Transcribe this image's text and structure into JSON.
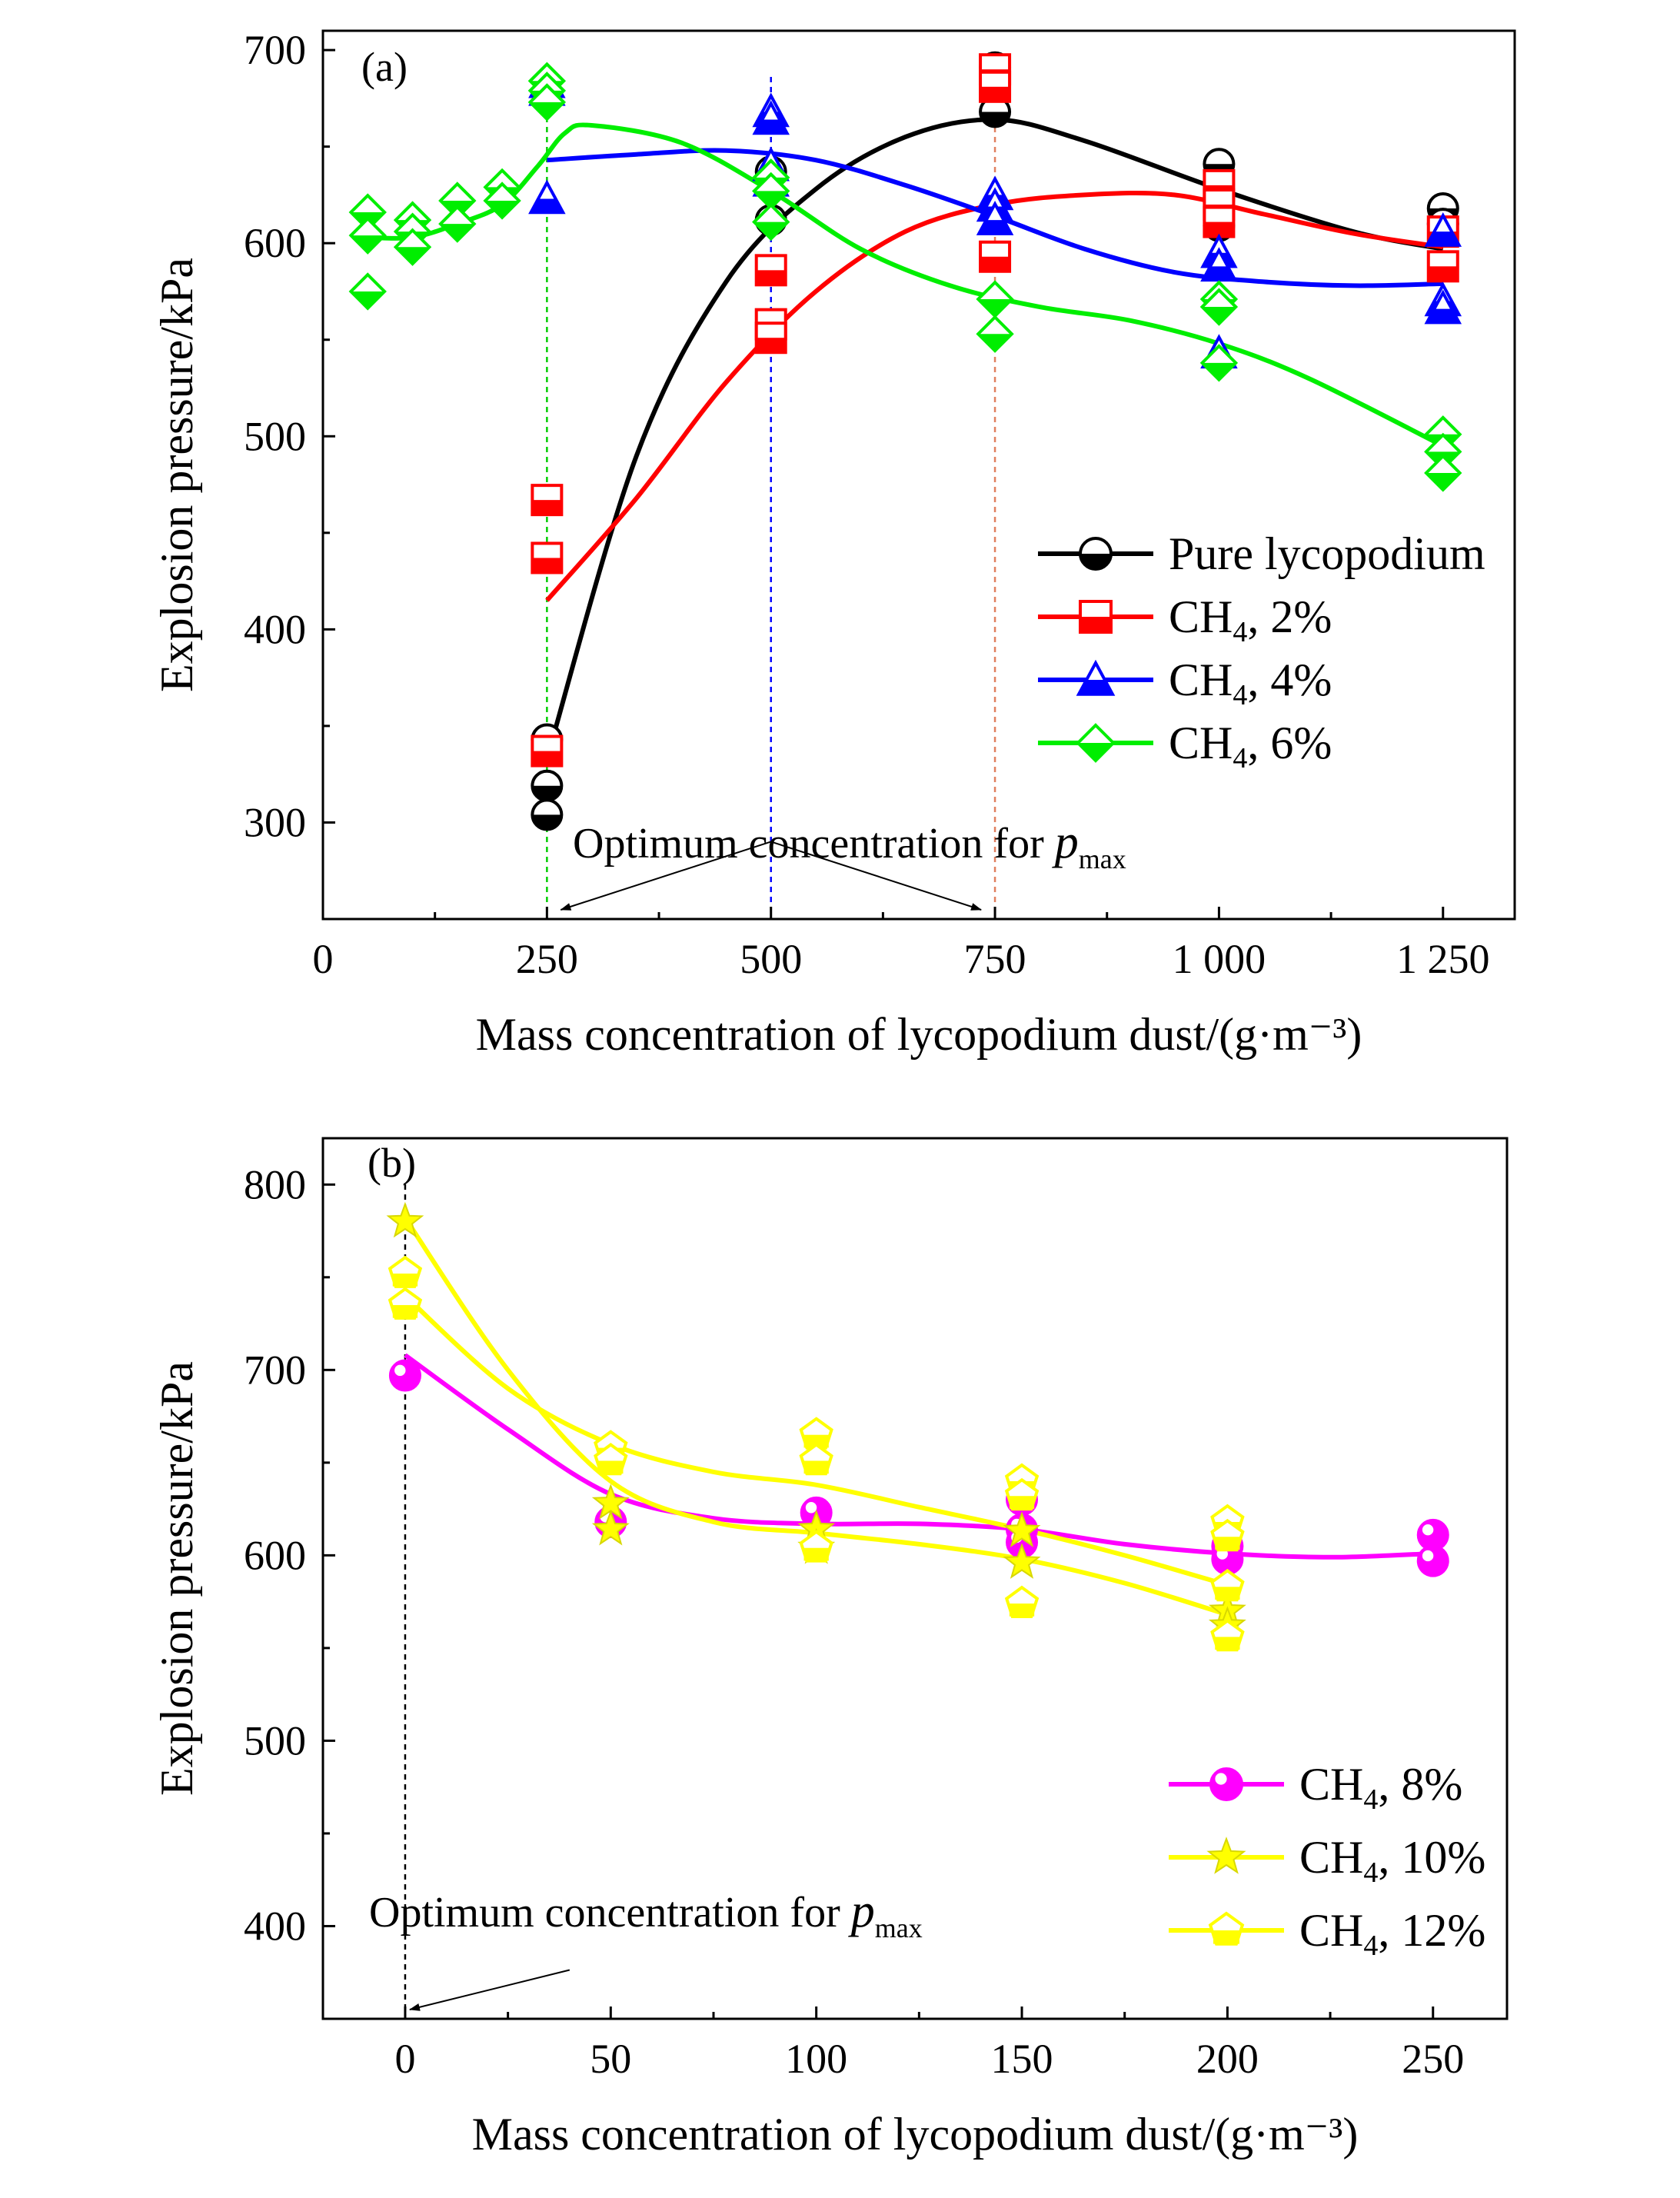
{
  "chart_data": [
    {
      "type": "scatter",
      "panel_label": "(a)",
      "xlabel": "Mass concentration of lycopodium dust/(g·m⁻³)",
      "ylabel": "Explosion pressure/kPa",
      "xlim": [
        0,
        1330
      ],
      "ylim": [
        250,
        710
      ],
      "xticks": [
        0,
        250,
        500,
        750,
        1000,
        1250
      ],
      "xtick_labels": [
        "0",
        "250",
        "500",
        "750",
        "1 000",
        "1 250"
      ],
      "yticks": [
        300,
        400,
        500,
        600,
        700
      ],
      "ytick_labels": [
        "300",
        "400",
        "500",
        "600",
        "700"
      ],
      "legend_position": "right",
      "annotation": {
        "text": "Optimum concentration  for ",
        "math": "p",
        "sub": "max",
        "targets": [
          250,
          750
        ],
        "anchor": [
          500,
          300
        ]
      },
      "guides": [
        {
          "x": 250,
          "color": "#00cc00"
        },
        {
          "x": 500,
          "color": "#0000ff"
        },
        {
          "x": 750,
          "color": "#e08060"
        }
      ],
      "series": [
        {
          "name": "Pure lycopodium",
          "legend_main": "Pure lycopodium",
          "legend_sub": "",
          "legend_tail": "",
          "color": "#000000",
          "marker": "circle-half",
          "points": [
            [
              250,
              343
            ],
            [
              250,
              319
            ],
            [
              250,
              304
            ],
            [
              500,
              637
            ],
            [
              500,
              612
            ],
            [
              750,
              691
            ],
            [
              750,
              668
            ],
            [
              1000,
              641
            ],
            [
              1000,
              609
            ],
            [
              1250,
              618
            ],
            [
              1250,
              610
            ]
          ],
          "fit": [
            [
              250,
              333
            ],
            [
              350,
              490
            ],
            [
              450,
              580
            ],
            [
              550,
              628
            ],
            [
              650,
              655
            ],
            [
              750,
              664
            ],
            [
              850,
              653
            ],
            [
              1000,
              628
            ],
            [
              1150,
              606
            ],
            [
              1250,
              597
            ]
          ]
        },
        {
          "name": "CH4, 2%",
          "legend_main": "CH",
          "legend_sub": "4",
          "legend_tail": ", 2%",
          "color": "#ff0000",
          "marker": "square-half",
          "points": [
            [
              250,
              467
            ],
            [
              250,
              437
            ],
            [
              250,
              337
            ],
            [
              500,
              586
            ],
            [
              500,
              558
            ],
            [
              500,
              551
            ],
            [
              750,
              690
            ],
            [
              750,
              681
            ],
            [
              750,
              593
            ],
            [
              1000,
              630
            ],
            [
              1000,
              620
            ],
            [
              1000,
              611
            ],
            [
              1250,
              606
            ],
            [
              1250,
              588
            ]
          ],
          "fit": [
            [
              250,
              415
            ],
            [
              350,
              468
            ],
            [
              450,
              528
            ],
            [
              550,
              575
            ],
            [
              650,
              606
            ],
            [
              750,
              620
            ],
            [
              850,
              625
            ],
            [
              950,
              625
            ],
            [
              1050,
              615
            ],
            [
              1150,
              605
            ],
            [
              1250,
              598
            ]
          ]
        },
        {
          "name": "CH4, 4%",
          "legend_main": "CH",
          "legend_sub": "4",
          "legend_tail": ", 4%",
          "color": "#0000ff",
          "marker": "triangle-half",
          "points": [
            [
              250,
              683
            ],
            [
              250,
              679
            ],
            [
              250,
              623
            ],
            [
              500,
              668
            ],
            [
              500,
              664
            ],
            [
              500,
              640
            ],
            [
              500,
              632
            ],
            [
              750,
              625
            ],
            [
              750,
              619
            ],
            [
              750,
              612
            ],
            [
              1000,
              595
            ],
            [
              1000,
              588
            ],
            [
              1000,
              543
            ],
            [
              1250,
              606
            ],
            [
              1250,
              570
            ],
            [
              1250,
              566
            ]
          ],
          "fit": [
            [
              250,
              643
            ],
            [
              350,
              646
            ],
            [
              450,
              648
            ],
            [
              550,
              643
            ],
            [
              650,
              630
            ],
            [
              750,
              614
            ],
            [
              850,
              597
            ],
            [
              950,
              585
            ],
            [
              1050,
              580
            ],
            [
              1150,
              578
            ],
            [
              1250,
              579
            ]
          ]
        },
        {
          "name": "CH4, 6%",
          "legend_main": "CH",
          "legend_sub": "4",
          "legend_tail": ", 6%",
          "color": "#00ee00",
          "marker": "diamond-half",
          "points": [
            [
              50,
              616
            ],
            [
              50,
              604
            ],
            [
              50,
              575
            ],
            [
              100,
              612
            ],
            [
              100,
              606
            ],
            [
              100,
              598
            ],
            [
              150,
              622
            ],
            [
              150,
              610
            ],
            [
              200,
              629
            ],
            [
              200,
              622
            ],
            [
              250,
              684
            ],
            [
              250,
              679
            ],
            [
              250,
              673
            ],
            [
              500,
              634
            ],
            [
              500,
              627
            ],
            [
              500,
              611
            ],
            [
              750,
              571
            ],
            [
              750,
              553
            ],
            [
              1000,
              571
            ],
            [
              1000,
              567
            ],
            [
              1000,
              538
            ],
            [
              1250,
              501
            ],
            [
              1250,
              492
            ],
            [
              1250,
              481
            ]
          ],
          "fit": [
            [
              50,
              603
            ],
            [
              100,
              603
            ],
            [
              150,
              610
            ],
            [
              200,
              620
            ],
            [
              240,
              640
            ],
            [
              270,
              657
            ],
            [
              300,
              661
            ],
            [
              400,
              652
            ],
            [
              500,
              627
            ],
            [
              600,
              597
            ],
            [
              700,
              578
            ],
            [
              800,
              567
            ],
            [
              900,
              560
            ],
            [
              1000,
              548
            ],
            [
              1100,
              530
            ],
            [
              1250,
              495
            ]
          ]
        }
      ]
    },
    {
      "type": "scatter",
      "panel_label": "(b)",
      "xlabel": "Mass concentration of lycopodium dust/(g·m⁻³)",
      "ylabel": "Explosion pressure/kPa",
      "xlim": [
        -20,
        268
      ],
      "ylim": [
        350,
        825
      ],
      "xticks": [
        0,
        50,
        100,
        150,
        200,
        250
      ],
      "xtick_labels": [
        "0",
        "50",
        "100",
        "150",
        "200",
        "250"
      ],
      "yticks": [
        400,
        500,
        600,
        700,
        800
      ],
      "ytick_labels": [
        "400",
        "500",
        "600",
        "700",
        "800"
      ],
      "legend_position": "bottom-right",
      "annotation": {
        "text": "Optimum concentration for ",
        "math": "p",
        "sub": "max",
        "targets": [
          0
        ],
        "anchor": [
          40,
          395
        ]
      },
      "guides": [
        {
          "x": 0,
          "color": "#000000"
        }
      ],
      "series": [
        {
          "name": "CH4, 8%",
          "legend_main": "CH",
          "legend_sub": "4",
          "legend_tail": ", 8%",
          "color": "#ff00ff",
          "marker": "circle-ball",
          "points": [
            [
              0,
              697
            ],
            [
              50,
              618
            ],
            [
              100,
              623
            ],
            [
              150,
              630
            ],
            [
              150,
              614
            ],
            [
              150,
              607
            ],
            [
              200,
              605
            ],
            [
              200,
              598
            ],
            [
              250,
              611
            ],
            [
              250,
              597
            ]
          ],
          "fit": [
            [
              0,
              708
            ],
            [
              25,
              668
            ],
            [
              50,
              633
            ],
            [
              75,
              620
            ],
            [
              100,
              617
            ],
            [
              125,
              617
            ],
            [
              150,
              614
            ],
            [
              175,
              606
            ],
            [
              200,
              601
            ],
            [
              225,
              599
            ],
            [
              250,
              601
            ]
          ]
        },
        {
          "name": "CH4, 10%",
          "legend_main": "CH",
          "legend_sub": "4",
          "legend_tail": ", 10%",
          "color": "#ffff00",
          "marker": "star",
          "points": [
            [
              0,
              780
            ],
            [
              50,
              628
            ],
            [
              50,
              614
            ],
            [
              100,
              614
            ],
            [
              100,
              604
            ],
            [
              150,
              613
            ],
            [
              150,
              596
            ],
            [
              200,
              570
            ],
            [
              200,
              562
            ]
          ],
          "fit": [
            [
              0,
              782
            ],
            [
              25,
              700
            ],
            [
              50,
              640
            ],
            [
              75,
              618
            ],
            [
              100,
              612
            ],
            [
              125,
              606
            ],
            [
              150,
              598
            ],
            [
              175,
              585
            ],
            [
              200,
              568
            ]
          ]
        },
        {
          "name": "CH4, 12%",
          "legend_main": "CH",
          "legend_sub": "4",
          "legend_tail": ", 12%",
          "color": "#ffff00",
          "marker": "pentagon-half",
          "points": [
            [
              0,
              752
            ],
            [
              0,
              735
            ],
            [
              50,
              658
            ],
            [
              50,
              651
            ],
            [
              100,
              665
            ],
            [
              100,
              651
            ],
            [
              100,
              604
            ],
            [
              150,
              640
            ],
            [
              150,
              632
            ],
            [
              150,
              574
            ],
            [
              200,
              618
            ],
            [
              200,
              610
            ],
            [
              200,
              583
            ],
            [
              200,
              556
            ]
          ],
          "fit": [
            [
              0,
              740
            ],
            [
              25,
              690
            ],
            [
              50,
              660
            ],
            [
              75,
              645
            ],
            [
              100,
              638
            ],
            [
              125,
              626
            ],
            [
              150,
              614
            ],
            [
              175,
              600
            ],
            [
              200,
              584
            ]
          ]
        }
      ]
    }
  ]
}
